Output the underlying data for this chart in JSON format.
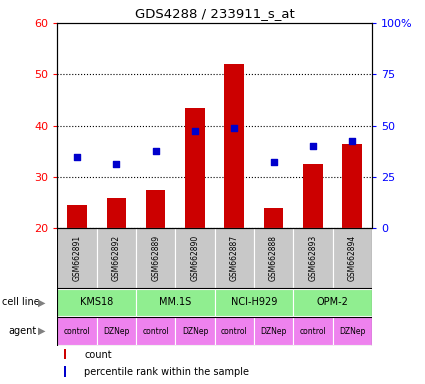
{
  "title": "GDS4288 / 233911_s_at",
  "samples": [
    "GSM662891",
    "GSM662892",
    "GSM662889",
    "GSM662890",
    "GSM662887",
    "GSM662888",
    "GSM662893",
    "GSM662894"
  ],
  "bar_values": [
    24.5,
    26.0,
    27.5,
    43.5,
    52.0,
    24.0,
    32.5,
    36.5
  ],
  "dot_values_left_axis": [
    34.0,
    32.5,
    35.0,
    39.0,
    39.5,
    33.0,
    36.0,
    37.0
  ],
  "cell_lines": [
    {
      "label": "KMS18",
      "start": 0,
      "end": 2,
      "color": "#90EE90"
    },
    {
      "label": "MM.1S",
      "start": 2,
      "end": 4,
      "color": "#90EE90"
    },
    {
      "label": "NCI-H929",
      "start": 4,
      "end": 6,
      "color": "#90EE90"
    },
    {
      "label": "OPM-2",
      "start": 6,
      "end": 8,
      "color": "#90EE90"
    }
  ],
  "agents": [
    "control",
    "DZNep",
    "control",
    "DZNep",
    "control",
    "DZNep",
    "control",
    "DZNep"
  ],
  "agent_color": "#EE82EE",
  "ylim_left": [
    20,
    60
  ],
  "ylim_right": [
    0,
    100
  ],
  "yticks_left": [
    20,
    30,
    40,
    50,
    60
  ],
  "yticks_right": [
    0,
    25,
    50,
    75,
    100
  ],
  "ytick_labels_right": [
    "0",
    "25",
    "50",
    "75",
    "100%"
  ],
  "bar_color": "#CC0000",
  "dot_color": "#0000CC",
  "sample_bg_color": "#C8C8C8",
  "bar_width": 0.5
}
